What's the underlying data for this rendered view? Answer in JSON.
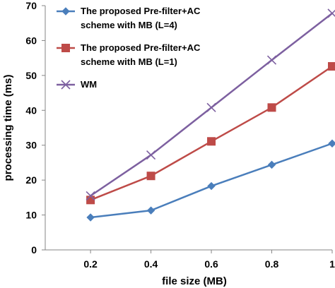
{
  "chart_data": {
    "type": "line",
    "xlabel": "file size (MB)",
    "ylabel": "processing time (ms)",
    "x": [
      0.2,
      0.4,
      0.6,
      0.8,
      1
    ],
    "x_tick_labels": [
      "0.2",
      "0.4",
      "0.6",
      "0.8",
      "1"
    ],
    "xlim": [
      0.05,
      1.0
    ],
    "ylim": [
      0,
      70
    ],
    "y_ticks": [
      0,
      10,
      20,
      30,
      40,
      50,
      60,
      70
    ],
    "grid": false,
    "legend_position": "top-left",
    "series": [
      {
        "name": "The proposed Pre-filter+AC scheme with MB (L=4)",
        "legend_lines": [
          "The proposed Pre-filter+AC",
          "scheme with MB (L=4)"
        ],
        "values": [
          9.3,
          11.3,
          18.3,
          24.4,
          30.5
        ],
        "color": "#4a7ebb",
        "marker": "diamond"
      },
      {
        "name": "The proposed Pre-filter+AC scheme with MB (L=1)",
        "legend_lines": [
          "The proposed Pre-filter+AC",
          "scheme with MB (L=1)"
        ],
        "values": [
          14.3,
          21.2,
          31.1,
          40.8,
          52.6
        ],
        "color": "#be4b48",
        "marker": "square"
      },
      {
        "name": "WM",
        "legend_lines": [
          "WM"
        ],
        "values": [
          15.5,
          27.2,
          40.8,
          54.4,
          67.8
        ],
        "color": "#7d60a0",
        "marker": "x"
      }
    ]
  }
}
